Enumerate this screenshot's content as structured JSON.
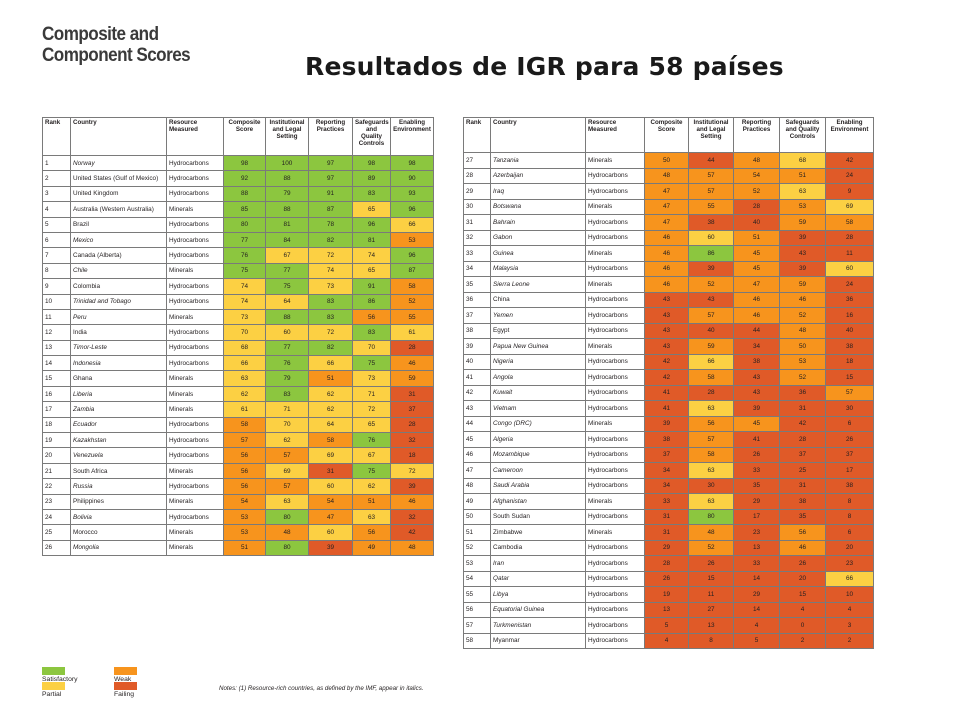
{
  "header": {
    "line1": "Composite and",
    "line2": "Component Scores"
  },
  "title": "Resultados de IGR para 58 países",
  "columns": [
    "Rank",
    "Country",
    "Resource Measured",
    "Composite Score",
    "Institutional and Legal Setting",
    "Reporting Practices",
    "Safeguards and Quality Controls",
    "Enabling Environment"
  ],
  "rows": [
    {
      "rank": "1",
      "country": "Norway",
      "italic": true,
      "resource": "Hydrocarbons",
      "scores": [
        98,
        100,
        97,
        98,
        98
      ]
    },
    {
      "rank": "2",
      "country": "United States (Gulf of Mexico)",
      "italic": false,
      "resource": "Hydrocarbons",
      "scores": [
        92,
        88,
        97,
        89,
        90
      ]
    },
    {
      "rank": "3",
      "country": "United Kingdom",
      "italic": false,
      "resource": "Hydrocarbons",
      "scores": [
        88,
        79,
        91,
        83,
        93
      ]
    },
    {
      "rank": "4",
      "country": "Australia (Western Australia)",
      "italic": false,
      "resource": "Minerals",
      "scores": [
        85,
        88,
        87,
        65,
        96
      ]
    },
    {
      "rank": "5",
      "country": "Brazil",
      "italic": false,
      "resource": "Hydrocarbons",
      "scores": [
        80,
        81,
        78,
        96,
        66
      ]
    },
    {
      "rank": "6",
      "country": "Mexico",
      "italic": true,
      "resource": "Hydrocarbons",
      "scores": [
        77,
        84,
        82,
        81,
        53
      ]
    },
    {
      "rank": "7",
      "country": "Canada (Alberta)",
      "italic": false,
      "resource": "Hydrocarbons",
      "scores": [
        76,
        67,
        72,
        74,
        96
      ]
    },
    {
      "rank": "8",
      "country": "Chile",
      "italic": true,
      "resource": "Minerals",
      "scores": [
        75,
        77,
        74,
        65,
        87
      ]
    },
    {
      "rank": "9",
      "country": "Colombia",
      "italic": false,
      "resource": "Hydrocarbons",
      "scores": [
        74,
        75,
        73,
        91,
        58
      ]
    },
    {
      "rank": "10",
      "country": "Trinidad and Tobago",
      "italic": true,
      "resource": "Hydrocarbons",
      "scores": [
        74,
        64,
        83,
        86,
        52
      ]
    },
    {
      "rank": "11",
      "country": "Peru",
      "italic": true,
      "resource": "Minerals",
      "scores": [
        73,
        88,
        83,
        56,
        55
      ]
    },
    {
      "rank": "12",
      "country": "India",
      "italic": false,
      "resource": "Hydrocarbons",
      "scores": [
        70,
        60,
        72,
        83,
        61
      ]
    },
    {
      "rank": "13",
      "country": "Timor-Leste",
      "italic": true,
      "resource": "Hydrocarbons",
      "scores": [
        68,
        77,
        82,
        70,
        28
      ]
    },
    {
      "rank": "14",
      "country": "Indonesia",
      "italic": true,
      "resource": "Hydrocarbons",
      "scores": [
        66,
        76,
        66,
        75,
        46
      ]
    },
    {
      "rank": "15",
      "country": "Ghana",
      "italic": false,
      "resource": "Minerals",
      "scores": [
        63,
        79,
        51,
        73,
        59
      ]
    },
    {
      "rank": "16",
      "country": "Liberia",
      "italic": true,
      "resource": "Minerals",
      "scores": [
        62,
        83,
        62,
        71,
        31
      ]
    },
    {
      "rank": "17",
      "country": "Zambia",
      "italic": true,
      "resource": "Minerals",
      "scores": [
        61,
        71,
        62,
        72,
        37
      ]
    },
    {
      "rank": "18",
      "country": "Ecuador",
      "italic": true,
      "resource": "Hydrocarbons",
      "scores": [
        58,
        70,
        64,
        65,
        28
      ]
    },
    {
      "rank": "19",
      "country": "Kazakhstan",
      "italic": true,
      "resource": "Hydrocarbons",
      "scores": [
        57,
        62,
        58,
        76,
        32
      ]
    },
    {
      "rank": "20",
      "country": "Venezuela",
      "italic": true,
      "resource": "Hydrocarbons",
      "scores": [
        56,
        57,
        69,
        67,
        18
      ]
    },
    {
      "rank": "21",
      "country": "South Africa",
      "italic": false,
      "resource": "Minerals",
      "scores": [
        56,
        69,
        31,
        75,
        72
      ]
    },
    {
      "rank": "22",
      "country": "Russia",
      "italic": true,
      "resource": "Hydrocarbons",
      "scores": [
        56,
        57,
        60,
        62,
        39
      ]
    },
    {
      "rank": "23",
      "country": "Philippines",
      "italic": false,
      "resource": "Minerals",
      "scores": [
        54,
        63,
        54,
        51,
        46
      ]
    },
    {
      "rank": "24",
      "country": "Bolivia",
      "italic": true,
      "resource": "Hydrocarbons",
      "scores": [
        53,
        80,
        47,
        63,
        32
      ]
    },
    {
      "rank": "25",
      "country": "Morocco",
      "italic": false,
      "resource": "Minerals",
      "scores": [
        53,
        48,
        60,
        56,
        42
      ]
    },
    {
      "rank": "26",
      "country": "Mongolia",
      "italic": true,
      "resource": "Minerals",
      "scores": [
        51,
        80,
        39,
        49,
        48
      ]
    },
    {
      "rank": "27",
      "country": "Tanzania",
      "italic": true,
      "resource": "Minerals",
      "scores": [
        50,
        44,
        48,
        68,
        42
      ]
    },
    {
      "rank": "28",
      "country": "Azerbaijan",
      "italic": true,
      "resource": "Hydrocarbons",
      "scores": [
        48,
        57,
        54,
        51,
        24
      ]
    },
    {
      "rank": "29",
      "country": "Iraq",
      "italic": true,
      "resource": "Hydrocarbons",
      "scores": [
        47,
        57,
        52,
        63,
        9
      ]
    },
    {
      "rank": "30",
      "country": "Botswana",
      "italic": true,
      "resource": "Minerals",
      "scores": [
        47,
        55,
        28,
        53,
        69
      ]
    },
    {
      "rank": "31",
      "country": "Bahrain",
      "italic": true,
      "resource": "Hydrocarbons",
      "scores": [
        47,
        38,
        40,
        59,
        58
      ]
    },
    {
      "rank": "32",
      "country": "Gabon",
      "italic": true,
      "resource": "Hydrocarbons",
      "scores": [
        46,
        60,
        51,
        39,
        28
      ]
    },
    {
      "rank": "33",
      "country": "Guinea",
      "italic": true,
      "resource": "Minerals",
      "scores": [
        46,
        86,
        45,
        43,
        11
      ]
    },
    {
      "rank": "34",
      "country": "Malaysia",
      "italic": true,
      "resource": "Hydrocarbons",
      "scores": [
        46,
        39,
        45,
        39,
        60
      ]
    },
    {
      "rank": "35",
      "country": "Sierra Leone",
      "italic": true,
      "resource": "Minerals",
      "scores": [
        46,
        52,
        47,
        59,
        24
      ]
    },
    {
      "rank": "36",
      "country": "China",
      "italic": false,
      "resource": "Hydrocarbons",
      "scores": [
        43,
        43,
        46,
        46,
        36
      ]
    },
    {
      "rank": "37",
      "country": "Yemen",
      "italic": true,
      "resource": "Hydrocarbons",
      "scores": [
        43,
        57,
        46,
        52,
        16
      ]
    },
    {
      "rank": "38",
      "country": "Egypt",
      "italic": false,
      "resource": "Hydrocarbons",
      "scores": [
        43,
        40,
        44,
        48,
        40
      ]
    },
    {
      "rank": "39",
      "country": "Papua New Guinea",
      "italic": true,
      "resource": "Minerals",
      "scores": [
        43,
        59,
        34,
        50,
        38
      ]
    },
    {
      "rank": "40",
      "country": "Nigeria",
      "italic": true,
      "resource": "Hydrocarbons",
      "scores": [
        42,
        66,
        38,
        53,
        18
      ]
    },
    {
      "rank": "41",
      "country": "Angola",
      "italic": true,
      "resource": "Hydrocarbons",
      "scores": [
        42,
        58,
        43,
        52,
        15
      ]
    },
    {
      "rank": "42",
      "country": "Kuwait",
      "italic": true,
      "resource": "Hydrocarbons",
      "scores": [
        41,
        28,
        43,
        36,
        57
      ]
    },
    {
      "rank": "43",
      "country": "Vietnam",
      "italic": true,
      "resource": "Hydrocarbons",
      "scores": [
        41,
        63,
        39,
        31,
        30
      ]
    },
    {
      "rank": "44",
      "country": "Congo (DRC)",
      "italic": true,
      "resource": "Minerals",
      "scores": [
        39,
        56,
        45,
        42,
        6
      ]
    },
    {
      "rank": "45",
      "country": "Algeria",
      "italic": true,
      "resource": "Hydrocarbons",
      "scores": [
        38,
        57,
        41,
        28,
        26
      ]
    },
    {
      "rank": "46",
      "country": "Mozambique",
      "italic": true,
      "resource": "Hydrocarbons",
      "scores": [
        37,
        58,
        26,
        37,
        37
      ]
    },
    {
      "rank": "47",
      "country": "Cameroon",
      "italic": true,
      "resource": "Hydrocarbons",
      "scores": [
        34,
        63,
        33,
        25,
        17
      ]
    },
    {
      "rank": "48",
      "country": "Saudi Arabia",
      "italic": true,
      "resource": "Hydrocarbons",
      "scores": [
        34,
        30,
        35,
        31,
        38
      ]
    },
    {
      "rank": "49",
      "country": "Afghanistan",
      "italic": true,
      "resource": "Minerals",
      "scores": [
        33,
        63,
        29,
        38,
        8
      ]
    },
    {
      "rank": "50",
      "country": "South Sudan",
      "italic": false,
      "resource": "Hydrocarbons",
      "scores": [
        31,
        80,
        17,
        35,
        8
      ]
    },
    {
      "rank": "51",
      "country": "Zimbabwe",
      "italic": false,
      "resource": "Minerals",
      "scores": [
        31,
        48,
        23,
        56,
        6
      ]
    },
    {
      "rank": "52",
      "country": "Cambodia",
      "italic": false,
      "resource": "Hydrocarbons",
      "scores": [
        29,
        52,
        13,
        46,
        20
      ]
    },
    {
      "rank": "53",
      "country": "Iran",
      "italic": true,
      "resource": "Hydrocarbons",
      "scores": [
        28,
        26,
        33,
        26,
        23
      ]
    },
    {
      "rank": "54",
      "country": "Qatar",
      "italic": true,
      "resource": "Hydrocarbons",
      "scores": [
        26,
        15,
        14,
        20,
        66
      ]
    },
    {
      "rank": "55",
      "country": "Libya",
      "italic": true,
      "resource": "Hydrocarbons",
      "scores": [
        19,
        11,
        29,
        15,
        10
      ]
    },
    {
      "rank": "56",
      "country": "Equatorial Guinea",
      "italic": true,
      "resource": "Hydrocarbons",
      "scores": [
        13,
        27,
        14,
        4,
        4
      ]
    },
    {
      "rank": "57",
      "country": "Turkmenistan",
      "italic": true,
      "resource": "Hydrocarbons",
      "scores": [
        5,
        13,
        4,
        0,
        3
      ]
    },
    {
      "rank": "58",
      "country": "Myanmar",
      "italic": false,
      "resource": "Hydrocarbons",
      "scores": [
        4,
        8,
        5,
        2,
        2
      ]
    }
  ],
  "legend": [
    {
      "label": "Satisfactory",
      "color": "#8cc63f"
    },
    {
      "label": "Partial",
      "color": "#fcd043"
    },
    {
      "label": "Weak",
      "color": "#f7941d"
    },
    {
      "label": "Failing",
      "color": "#e05a28"
    }
  ],
  "notes": "Notes: (1) Resource-rich countries, as defined by the IMF, appear in italics."
}
